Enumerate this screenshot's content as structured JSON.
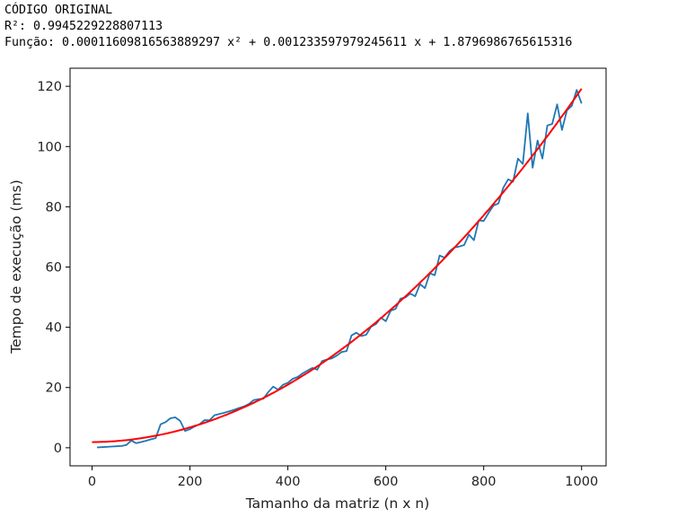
{
  "output": {
    "header": "CÓDIGO ORIGINAL",
    "r2_line": "R²: 0.9945229228807113",
    "function_line": "Função: 0.00011609816563889297 x² + 0.001233597979245611 x + 1.8796986765615316"
  },
  "colors": {
    "measured": "#1f77b4",
    "fit": "#ff0000"
  },
  "chart_data": {
    "type": "line",
    "xlabel": "Tamanho da matriz (n x n)",
    "ylabel": "Tempo de execução (ms)",
    "xlim": [
      -45,
      1050
    ],
    "ylim": [
      -6,
      126
    ],
    "xticks": [
      0,
      200,
      400,
      600,
      800,
      1000
    ],
    "yticks": [
      0,
      20,
      40,
      60,
      80,
      100,
      120
    ],
    "grid": false,
    "fit_coefficients": {
      "a": 0.00011609816563889297,
      "b": 0.001233597979245611,
      "c": 1.8796986765615316
    },
    "series": [
      {
        "kind": "measured",
        "x": [
          10,
          20,
          30,
          40,
          50,
          60,
          70,
          80,
          90,
          100,
          110,
          120,
          130,
          140,
          150,
          160,
          170,
          180,
          190,
          200,
          210,
          220,
          230,
          240,
          250,
          260,
          270,
          280,
          290,
          300,
          310,
          320,
          330,
          340,
          350,
          360,
          370,
          380,
          390,
          400,
          410,
          420,
          430,
          440,
          450,
          460,
          470,
          480,
          490,
          500,
          510,
          520,
          530,
          540,
          550,
          560,
          570,
          580,
          590,
          600,
          610,
          620,
          630,
          640,
          650,
          660,
          670,
          680,
          690,
          700,
          710,
          720,
          730,
          740,
          750,
          760,
          770,
          780,
          790,
          800,
          810,
          820,
          830,
          840,
          850,
          860,
          870,
          880,
          890,
          900,
          910,
          920,
          930,
          940,
          950,
          960,
          970,
          980,
          990,
          1000
        ],
        "y": [
          0.1,
          0.2,
          0.3,
          0.4,
          0.5,
          0.6,
          0.9,
          2.4,
          1.5,
          1.9,
          2.3,
          2.8,
          3.2,
          7.8,
          8.5,
          9.8,
          10.1,
          8.9,
          5.6,
          6.2,
          7.1,
          7.9,
          9.2,
          9.1,
          10.8,
          11.2,
          11.6,
          12.1,
          12.6,
          13.2,
          13.7,
          14.5,
          15.8,
          16.1,
          16.3,
          18.5,
          20.3,
          19.3,
          20.9,
          21.6,
          22.9,
          23.5,
          24.7,
          25.6,
          26.5,
          25.9,
          28.8,
          29.3,
          29.7,
          30.6,
          31.8,
          32.1,
          37.3,
          38.2,
          37.1,
          37.5,
          40.2,
          41.1,
          43.2,
          42.0,
          45.5,
          46.1,
          49.5,
          49.9,
          51.2,
          50.3,
          54.3,
          53.0,
          57.9,
          57.3,
          63.8,
          63.1,
          65.2,
          66.5,
          66.8,
          67.3,
          70.8,
          68.9,
          75.5,
          75.3,
          78.0,
          80.4,
          81.1,
          86.3,
          89.1,
          88.3,
          96.0,
          94.2,
          111.0,
          93.0,
          102.0,
          96.0,
          107.0,
          107.5,
          114.0,
          105.5,
          112.0,
          113.5,
          118.8,
          114.3
        ]
      },
      {
        "kind": "fit",
        "x_start": 0,
        "x_end": 1000
      }
    ]
  }
}
